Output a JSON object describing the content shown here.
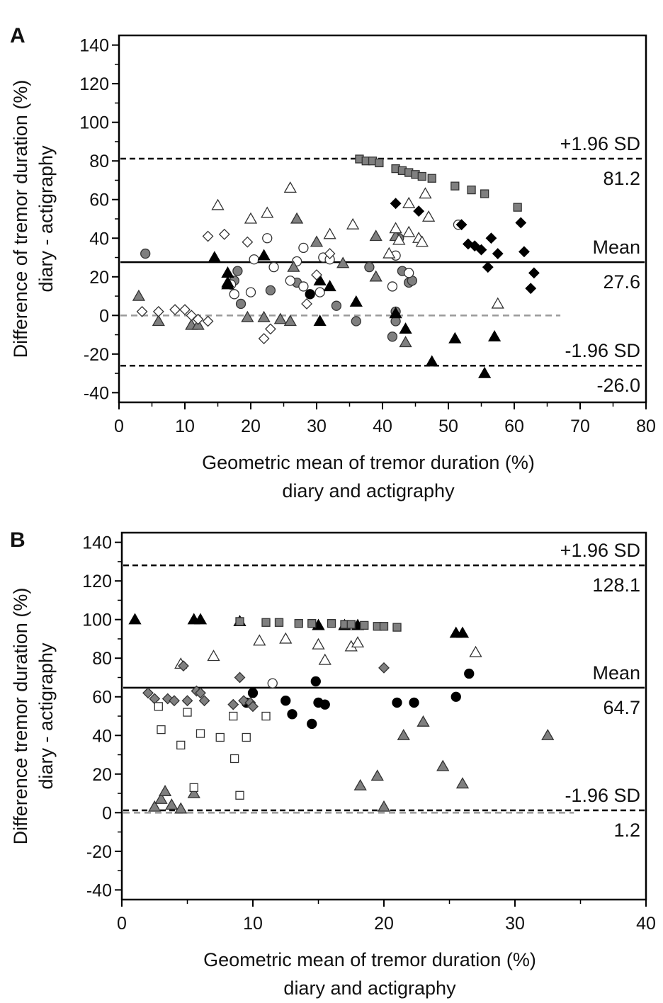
{
  "chart_data": [
    {
      "type": "scatter",
      "panel": "A",
      "xlabel": [
        "Geometric mean of tremor duration (%)",
        "diary and actigraphy"
      ],
      "ylabel": [
        "Difference of tremor duration (%)",
        "diary - actigraphy"
      ],
      "xlim": [
        0,
        80
      ],
      "ylim": [
        -45,
        145
      ],
      "xticks": [
        0,
        10,
        20,
        30,
        40,
        50,
        60,
        70,
        80
      ],
      "yticks": [
        -40,
        -20,
        0,
        20,
        40,
        60,
        80,
        100,
        120,
        140
      ],
      "grid": false,
      "zero_line": {
        "y": 0,
        "x_end": 67
      },
      "reference_lines": [
        {
          "id": "upper",
          "name": "+1.96 SD",
          "value_text": "81.2",
          "y": 81.2
        },
        {
          "id": "mean",
          "name": "Mean",
          "value_text": "27.6",
          "y": 27.6
        },
        {
          "id": "lower",
          "name": "-1.96 SD",
          "value_text": "-26.0",
          "y": -26.0
        }
      ],
      "series": [
        {
          "marker": "circle",
          "fill": "#7f7f7f",
          "points": [
            [
              4,
              32
            ],
            [
              17.5,
              18
            ],
            [
              18,
              23
            ],
            [
              18.5,
              6
            ],
            [
              23,
              13
            ],
            [
              27,
              17
            ],
            [
              33,
              5
            ],
            [
              36,
              -3
            ],
            [
              38,
              25
            ],
            [
              41.5,
              -11
            ],
            [
              42,
              -3
            ],
            [
              42,
              2
            ],
            [
              43,
              23
            ],
            [
              44,
              17
            ],
            [
              44.5,
              18
            ],
            [
              42.5,
              40
            ]
          ]
        },
        {
          "marker": "circle",
          "fill": "#ffffff",
          "points": [
            [
              17,
              16
            ],
            [
              17.5,
              11
            ],
            [
              20,
              12
            ],
            [
              20.5,
              29
            ],
            [
              22.5,
              40
            ],
            [
              23.5,
              25
            ],
            [
              26,
              18
            ],
            [
              27,
              28
            ],
            [
              28,
              35
            ],
            [
              28,
              15
            ],
            [
              30.5,
              12
            ],
            [
              31,
              30
            ],
            [
              32,
              29
            ],
            [
              41.5,
              15
            ],
            [
              42,
              31
            ],
            [
              44,
              22
            ],
            [
              51.5,
              47
            ]
          ]
        },
        {
          "marker": "circle",
          "fill": "#000000",
          "points": [
            [
              29,
              11
            ]
          ]
        },
        {
          "marker": "triangle",
          "fill": "#7f7f7f",
          "points": [
            [
              3,
              10
            ],
            [
              6,
              -3
            ],
            [
              11,
              -5
            ],
            [
              12,
              -5
            ],
            [
              19.5,
              -1
            ],
            [
              22,
              -1
            ],
            [
              24.5,
              -2
            ],
            [
              26,
              -3
            ],
            [
              26.5,
              25
            ],
            [
              27,
              50
            ],
            [
              30,
              38
            ],
            [
              34,
              27
            ],
            [
              39,
              41
            ],
            [
              39,
              20
            ],
            [
              42,
              41
            ],
            [
              43.5,
              -14
            ]
          ]
        },
        {
          "marker": "triangle",
          "fill": "#ffffff",
          "points": [
            [
              15,
              57
            ],
            [
              20,
              50
            ],
            [
              22.5,
              53
            ],
            [
              26,
              66
            ],
            [
              32,
              42
            ],
            [
              35.5,
              47
            ],
            [
              41,
              32
            ],
            [
              42,
              45
            ],
            [
              42.5,
              39
            ],
            [
              44,
              58
            ],
            [
              44,
              43
            ],
            [
              45.5,
              40
            ],
            [
              46,
              38
            ],
            [
              46.5,
              63
            ],
            [
              47,
              51
            ],
            [
              57.5,
              6
            ]
          ]
        },
        {
          "marker": "triangle",
          "fill": "#000000",
          "points": [
            [
              14.5,
              30
            ],
            [
              16.5,
              22
            ],
            [
              16.5,
              17
            ],
            [
              16.5,
              16
            ],
            [
              22,
              31
            ],
            [
              30.5,
              18
            ],
            [
              30.5,
              -3
            ],
            [
              32,
              15
            ],
            [
              36,
              7
            ],
            [
              42,
              1
            ],
            [
              43.5,
              -7
            ],
            [
              47.5,
              -24
            ],
            [
              51,
              -12
            ],
            [
              55.5,
              -30
            ],
            [
              57,
              -11
            ]
          ]
        },
        {
          "marker": "diamond",
          "fill": "#ffffff",
          "points": [
            [
              3.5,
              2
            ],
            [
              6,
              2
            ],
            [
              8.5,
              3
            ],
            [
              10,
              3
            ],
            [
              11,
              0
            ],
            [
              12,
              -2
            ],
            [
              13.5,
              -3
            ],
            [
              13.5,
              41
            ],
            [
              16,
              42
            ],
            [
              19.5,
              38
            ],
            [
              22,
              -12
            ],
            [
              23,
              -7
            ],
            [
              28.5,
              6
            ],
            [
              30,
              21
            ],
            [
              32,
              32
            ]
          ]
        },
        {
          "marker": "diamond",
          "fill": "#000000",
          "points": [
            [
              42,
              58
            ],
            [
              45.5,
              54
            ],
            [
              52,
              47
            ],
            [
              53,
              37
            ],
            [
              54,
              36
            ],
            [
              55,
              34
            ],
            [
              56,
              25
            ],
            [
              56.5,
              40
            ],
            [
              57.5,
              32
            ],
            [
              61,
              48
            ],
            [
              61.5,
              33
            ],
            [
              63,
              22
            ],
            [
              62.5,
              14
            ]
          ]
        },
        {
          "marker": "square",
          "fill": "#7f7f7f",
          "points": [
            [
              36.5,
              81
            ],
            [
              37.5,
              80
            ],
            [
              38.5,
              80
            ],
            [
              39.5,
              79
            ],
            [
              42,
              76
            ],
            [
              43,
              75
            ],
            [
              44,
              74
            ],
            [
              45,
              73
            ],
            [
              46,
              72
            ],
            [
              47.5,
              71
            ],
            [
              51,
              67
            ],
            [
              53.5,
              65
            ],
            [
              55.5,
              63
            ],
            [
              60.5,
              56
            ]
          ]
        }
      ]
    },
    {
      "type": "scatter",
      "panel": "B",
      "xlabel": [
        "Geometric mean of tremor duration (%)",
        "diary and actigraphy"
      ],
      "ylabel": [
        "Difference tremor duration (%)",
        "diary - actigraphy"
      ],
      "xlim": [
        0,
        40
      ],
      "ylim": [
        -45,
        145
      ],
      "xticks": [
        0,
        10,
        20,
        30,
        40
      ],
      "yticks": [
        -40,
        -20,
        0,
        20,
        40,
        60,
        80,
        100,
        120,
        140
      ],
      "grid": false,
      "zero_line": {
        "y": 0,
        "x_end": 34.5
      },
      "reference_lines": [
        {
          "id": "upper",
          "name": "+1.96 SD",
          "value_text": "128.1",
          "y": 128.1
        },
        {
          "id": "mean",
          "name": "Mean",
          "value_text": "64.7",
          "y": 64.7
        },
        {
          "id": "lower",
          "name": "-1.96 SD",
          "value_text": "1.2",
          "y": 1.2
        }
      ],
      "series": [
        {
          "marker": "circle",
          "fill": "#000000",
          "points": [
            [
              9.5,
              57
            ],
            [
              10,
              62
            ],
            [
              12.5,
              58
            ],
            [
              13,
              51
            ],
            [
              14.5,
              46
            ],
            [
              14.8,
              68
            ],
            [
              15,
              57
            ],
            [
              15.5,
              56
            ],
            [
              21,
              57
            ],
            [
              22.3,
              57
            ],
            [
              25.5,
              60
            ],
            [
              26.5,
              72
            ]
          ]
        },
        {
          "marker": "circle",
          "fill": "#ffffff",
          "points": [
            [
              11.5,
              67
            ]
          ]
        },
        {
          "marker": "triangle",
          "fill": "#7f7f7f",
          "points": [
            [
              2.5,
              3
            ],
            [
              3,
              7
            ],
            [
              3.3,
              11
            ],
            [
              3.8,
              4
            ],
            [
              4.5,
              2
            ],
            [
              5.5,
              10
            ],
            [
              18.2,
              14
            ],
            [
              19.5,
              19
            ],
            [
              20,
              3
            ],
            [
              21.5,
              40
            ],
            [
              23,
              47
            ],
            [
              24.5,
              24
            ],
            [
              26,
              15
            ],
            [
              32.5,
              40
            ]
          ]
        },
        {
          "marker": "triangle",
          "fill": "#ffffff",
          "points": [
            [
              4.5,
              77
            ],
            [
              7,
              81
            ],
            [
              10.5,
              89
            ],
            [
              12.5,
              90
            ],
            [
              15,
              87
            ],
            [
              15.5,
              79
            ],
            [
              17.5,
              86
            ],
            [
              18,
              88
            ],
            [
              27,
              83
            ]
          ]
        },
        {
          "marker": "triangle",
          "fill": "#000000",
          "points": [
            [
              1,
              100
            ],
            [
              5.5,
              100
            ],
            [
              6,
              100
            ],
            [
              9,
              99
            ],
            [
              15,
              97
            ],
            [
              17,
              97
            ],
            [
              18,
              97
            ],
            [
              25.5,
              93
            ],
            [
              26,
              93
            ]
          ]
        },
        {
          "marker": "diamond",
          "fill": "#7f7f7f",
          "points": [
            [
              2,
              62
            ],
            [
              2.5,
              59
            ],
            [
              3.5,
              59
            ],
            [
              4,
              58
            ],
            [
              4.7,
              76
            ],
            [
              5,
              58
            ],
            [
              5.7,
              63
            ],
            [
              6,
              62
            ],
            [
              6.3,
              58
            ],
            [
              8.5,
              56
            ],
            [
              9,
              70
            ],
            [
              9.3,
              58
            ],
            [
              9.8,
              57
            ],
            [
              10,
              55
            ],
            [
              20,
              75
            ]
          ]
        },
        {
          "marker": "square",
          "fill": "#ffffff",
          "points": [
            [
              2.8,
              55
            ],
            [
              3,
              43
            ],
            [
              4.5,
              35
            ],
            [
              5,
              52
            ],
            [
              6,
              41
            ],
            [
              7.5,
              39
            ],
            [
              8.5,
              50
            ],
            [
              8.6,
              28
            ],
            [
              9,
              9
            ],
            [
              9.5,
              39
            ],
            [
              11,
              50
            ],
            [
              5.5,
              13
            ]
          ]
        },
        {
          "marker": "square",
          "fill": "#7f7f7f",
          "points": [
            [
              9,
              99
            ],
            [
              11,
              98.5
            ],
            [
              12,
              98.5
            ],
            [
              13.5,
              98
            ],
            [
              14.5,
              98
            ],
            [
              16,
              98
            ],
            [
              17,
              97.5
            ],
            [
              17.5,
              97.5
            ],
            [
              18.5,
              97
            ],
            [
              19.5,
              96.5
            ],
            [
              20,
              96.5
            ],
            [
              21,
              96
            ]
          ]
        }
      ]
    }
  ]
}
